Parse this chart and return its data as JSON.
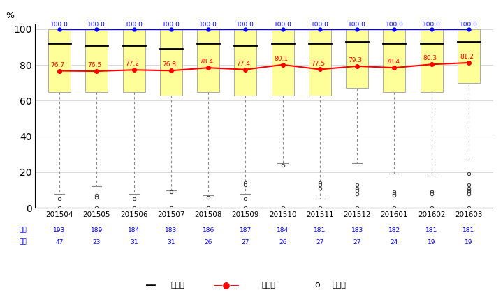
{
  "periods": [
    "201504",
    "201505",
    "201506",
    "201507",
    "201508",
    "201509",
    "201510",
    "201511",
    "201512",
    "201601",
    "201602",
    "201603"
  ],
  "means": [
    76.7,
    76.5,
    77.2,
    76.8,
    78.4,
    77.4,
    80.1,
    77.5,
    79.3,
    78.4,
    80.3,
    81.2
  ],
  "max_vals": [
    100.0,
    100.0,
    100.0,
    100.0,
    100.0,
    100.0,
    100.0,
    100.0,
    100.0,
    100.0,
    100.0,
    100.0
  ],
  "box_q1": [
    65,
    65,
    65,
    63,
    65,
    63,
    63,
    63,
    67,
    65,
    65,
    70
  ],
  "box_median": [
    92,
    91,
    91,
    89,
    92,
    91,
    92,
    92,
    93,
    92,
    92,
    93
  ],
  "box_q3": [
    100,
    100,
    100,
    100,
    100,
    100,
    100,
    100,
    100,
    100,
    100,
    100
  ],
  "whisker_lo": [
    8,
    12,
    8,
    10,
    7,
    8,
    25,
    5,
    25,
    19,
    18,
    27
  ],
  "whisker_hi": [
    100,
    100,
    100,
    100,
    100,
    100,
    100,
    100,
    100,
    100,
    100,
    100
  ],
  "outliers": [
    [
      5,
      0
    ],
    [
      7,
      6,
      0
    ],
    [
      5,
      0
    ],
    [
      9,
      0
    ],
    [
      6,
      0
    ],
    [
      5,
      14,
      13,
      0
    ],
    [
      24,
      0
    ],
    [
      14,
      13,
      11,
      0
    ],
    [
      13,
      11,
      10,
      8,
      0
    ],
    [
      9,
      8,
      7,
      0
    ],
    [
      9,
      9,
      8,
      0
    ],
    [
      19,
      13,
      11,
      10,
      9,
      8,
      0
    ]
  ],
  "sublabels_num": [
    "193",
    "189",
    "184",
    "183",
    "186",
    "187",
    "184",
    "181",
    "183",
    "182",
    "181",
    "181"
  ],
  "sublabels_den": [
    "47",
    "23",
    "31",
    "31",
    "26",
    "27",
    "26",
    "27",
    "27",
    "24",
    "19",
    "19"
  ],
  "ylabel": "%",
  "ylim": [
    0,
    103
  ],
  "yticks": [
    0,
    20,
    40,
    60,
    80,
    100
  ],
  "box_color": "#FFFF99",
  "box_edgecolor": "#aaaaaa",
  "median_color": "#000000",
  "mean_color": "#FF0000",
  "max_color": "#0000FF",
  "whisker_color": "#888888",
  "flier_color": "#000000",
  "legend_median": "中央値",
  "legend_mean": "平均値",
  "legend_outlier": "外れ値"
}
